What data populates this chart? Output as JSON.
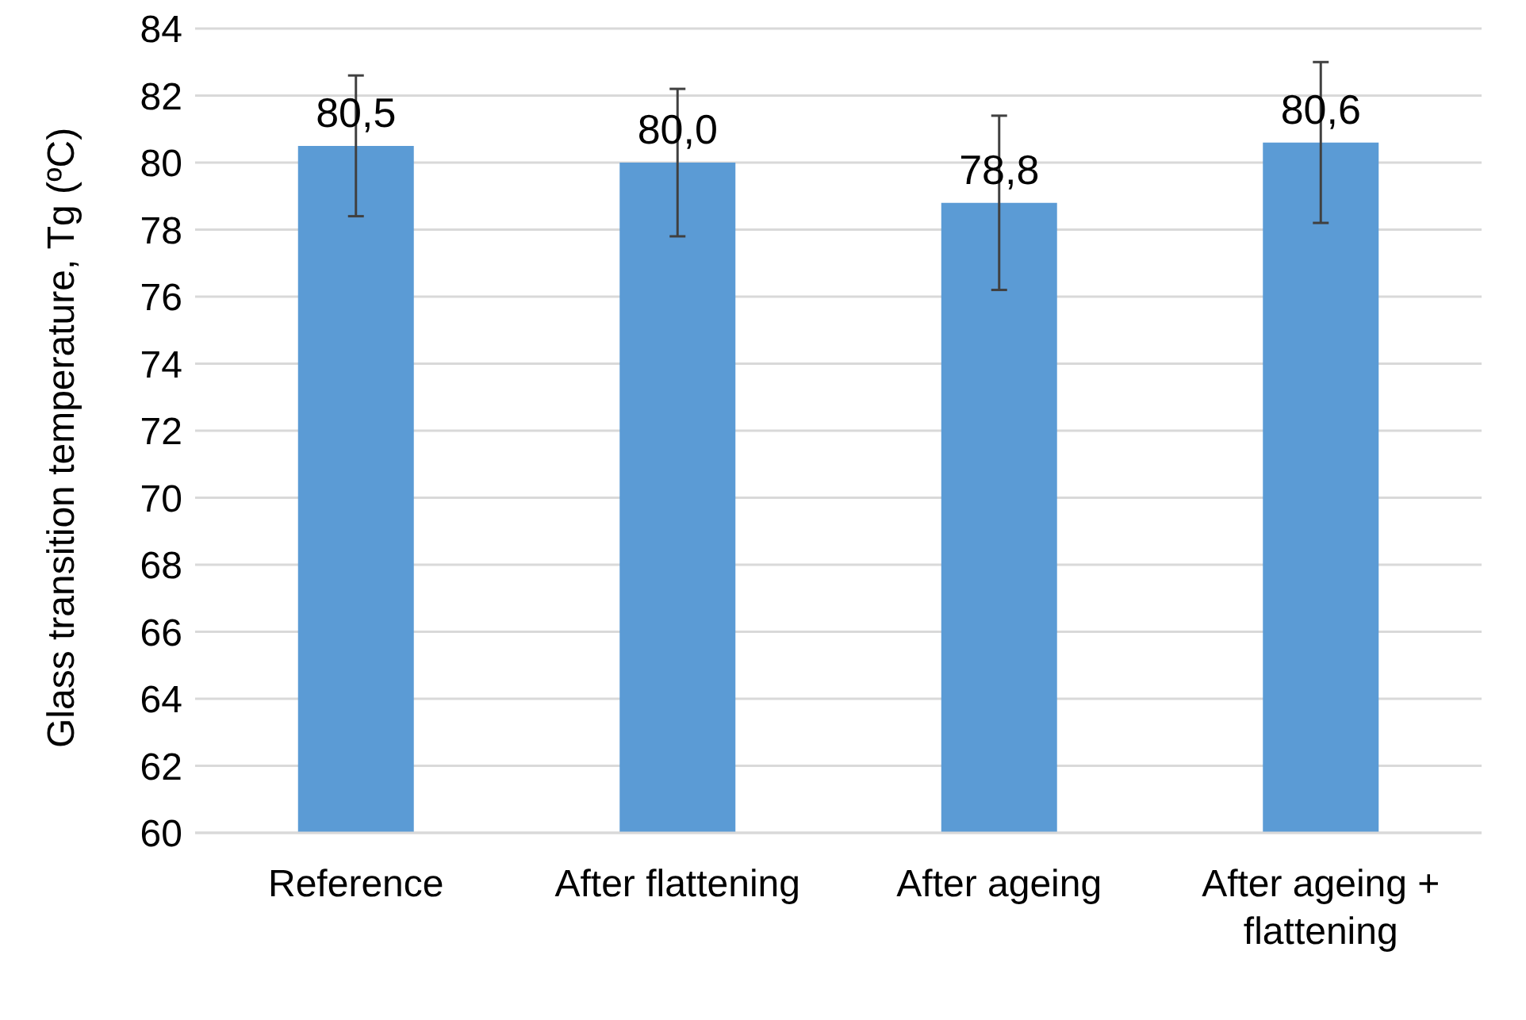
{
  "chart_data": {
    "type": "bar",
    "ylabel": "Glass transition temperature, Tg (ºC)",
    "categories": [
      "Reference",
      "After flattening",
      "After ageing",
      "After ageing + flattening"
    ],
    "values": [
      80.5,
      80.0,
      78.8,
      80.6
    ],
    "value_labels": [
      "80,5",
      "80,0",
      "78,8",
      "80,6"
    ],
    "errors": [
      2.1,
      2.2,
      2.6,
      2.4
    ],
    "color": "#5b9bd5",
    "ylim": [
      60,
      84
    ],
    "yticks": [
      60,
      62,
      64,
      66,
      68,
      70,
      72,
      74,
      76,
      78,
      80,
      82,
      84
    ],
    "grid": "y",
    "legend": false
  }
}
